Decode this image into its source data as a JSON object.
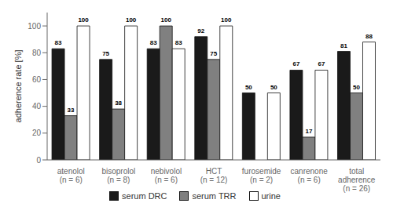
{
  "chart_data": {
    "type": "bar",
    "categories": [
      "atenolol\n(n = 6)",
      "bisoprolol\n(n = 8)",
      "nebivolol\n(n = 6)",
      "HCT\n(n = 12)",
      "furosemide\n(n = 2)",
      "canrenone\n(n = 6)",
      "total\nadherence\n(n = 26)"
    ],
    "series": [
      {
        "name": "serum DRC",
        "color": "#1a1a1a",
        "values": [
          83,
          75,
          83,
          92,
          50,
          67,
          81
        ]
      },
      {
        "name": "serum TRR",
        "color": "#808080",
        "values": [
          33,
          38,
          100,
          75,
          0,
          17,
          50
        ]
      },
      {
        "name": "urine",
        "color": "#ffffff",
        "values": [
          100,
          100,
          83,
          100,
          50,
          67,
          88
        ]
      }
    ],
    "ylabel": "adherence rate [%]",
    "ylim": [
      0,
      110
    ],
    "yticks": [
      0,
      20,
      40,
      60,
      80,
      100
    ],
    "data_labels": true,
    "grid": false,
    "legend": "bottom"
  }
}
